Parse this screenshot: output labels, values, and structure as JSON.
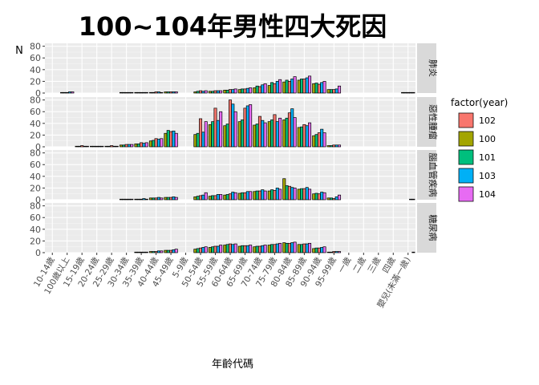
{
  "chart_data": {
    "type": "bar",
    "title": "100~104年男性四大死因",
    "xlabel": "年齡代碼",
    "ylabel": "N",
    "ylim": [
      0,
      85
    ],
    "yticks": [
      0,
      20,
      40,
      60,
      80
    ],
    "legend": {
      "title": "factor(year)",
      "placement": "right",
      "order": [
        "102",
        "100",
        "101",
        "103",
        "104"
      ]
    },
    "series_colors": {
      "100": "#A3A500",
      "101": "#00BF7D",
      "102": "#F8766D",
      "103": "#00B0F6",
      "104": "#E76BF3"
    },
    "categories": [
      "10-14歲",
      "100歲以上",
      "15-19歲",
      "20-24歲",
      "25-29歲",
      "30-34歲",
      "35-39歲",
      "40-44歲",
      "45-49歲",
      "5-9歲",
      "50-54歲",
      "55-59歲",
      "60-64歲",
      "65-69歲",
      "70-74歲",
      "75-79歲",
      "80-84歲",
      "85-89歲",
      "90-94歲",
      "95-99歲",
      "一歲",
      "二歲",
      "三歲",
      "四歲",
      "嬰兒(未滿一歲)"
    ],
    "series_order": [
      "100",
      "101",
      "102",
      "103",
      "104"
    ],
    "facets": [
      {
        "label": "肺炎",
        "values": {
          "100": [
            0,
            1,
            0,
            0,
            0,
            1,
            1,
            1,
            2,
            0,
            2,
            3,
            5,
            6,
            9,
            13,
            19,
            22,
            16,
            6,
            0,
            0,
            0,
            0,
            1
          ],
          "101": [
            0,
            1,
            0,
            0,
            0,
            1,
            1,
            1,
            2,
            0,
            3,
            3,
            5,
            7,
            12,
            18,
            22,
            24,
            17,
            6,
            0,
            0,
            0,
            0,
            1
          ],
          "102": [
            0,
            1,
            0,
            0,
            0,
            1,
            1,
            2,
            2,
            0,
            4,
            4,
            6,
            7,
            11,
            16,
            20,
            24,
            15,
            6,
            0,
            0,
            0,
            0,
            1
          ],
          "103": [
            0,
            2,
            0,
            0,
            0,
            1,
            1,
            2,
            2,
            0,
            3,
            4,
            6,
            8,
            14,
            20,
            24,
            26,
            18,
            7,
            0,
            0,
            0,
            0,
            1
          ],
          "104": [
            0,
            2,
            0,
            0,
            0,
            1,
            1,
            1,
            2,
            0,
            4,
            4,
            7,
            9,
            16,
            23,
            28,
            29,
            20,
            12,
            0,
            0,
            0,
            0,
            1
          ]
        }
      },
      {
        "label": "惡性腫瘤",
        "values": {
          "100": [
            0,
            0,
            1,
            1,
            1,
            3,
            5,
            10,
            23,
            0,
            21,
            38,
            36,
            43,
            37,
            43,
            46,
            33,
            19,
            2,
            0,
            0,
            0,
            0,
            0
          ],
          "101": [
            0,
            0,
            1,
            1,
            1,
            3,
            5,
            11,
            28,
            0,
            23,
            43,
            39,
            46,
            39,
            46,
            49,
            34,
            21,
            2,
            0,
            0,
            0,
            0,
            0
          ],
          "102": [
            0,
            0,
            2,
            1,
            2,
            4,
            7,
            14,
            26,
            0,
            48,
            66,
            80,
            66,
            52,
            55,
            58,
            38,
            24,
            3,
            0,
            0,
            0,
            0,
            0
          ],
          "103": [
            0,
            0,
            1,
            1,
            1,
            4,
            6,
            13,
            27,
            0,
            25,
            45,
            73,
            70,
            45,
            43,
            65,
            36,
            30,
            3,
            0,
            0,
            0,
            0,
            0
          ],
          "104": [
            0,
            0,
            1,
            1,
            1,
            4,
            7,
            14,
            23,
            0,
            43,
            60,
            60,
            72,
            41,
            49,
            50,
            41,
            24,
            3,
            0,
            0,
            0,
            0,
            0
          ]
        }
      },
      {
        "label": "腦血管疾病",
        "values": {
          "100": [
            0,
            0,
            0,
            0,
            0,
            1,
            1,
            3,
            4,
            0,
            5,
            6,
            8,
            11,
            14,
            15,
            36,
            18,
            10,
            3,
            0,
            0,
            0,
            0,
            0
          ],
          "101": [
            0,
            0,
            0,
            0,
            0,
            1,
            1,
            3,
            4,
            0,
            6,
            7,
            9,
            12,
            15,
            17,
            24,
            19,
            11,
            3,
            0,
            0,
            0,
            0,
            0
          ],
          "102": [
            0,
            0,
            0,
            0,
            0,
            1,
            1,
            3,
            4,
            0,
            7,
            7,
            10,
            12,
            15,
            16,
            23,
            19,
            10,
            2,
            0,
            0,
            0,
            0,
            0
          ],
          "103": [
            0,
            0,
            0,
            0,
            0,
            1,
            2,
            4,
            5,
            0,
            8,
            9,
            13,
            14,
            17,
            20,
            21,
            21,
            13,
            5,
            0,
            0,
            0,
            0,
            1
          ],
          "104": [
            0,
            0,
            0,
            0,
            0,
            1,
            1,
            3,
            4,
            0,
            12,
            9,
            12,
            14,
            15,
            18,
            20,
            18,
            12,
            8,
            0,
            0,
            0,
            0,
            1
          ]
        }
      },
      {
        "label": "糖尿病",
        "values": {
          "100": [
            0,
            0,
            0,
            0,
            0,
            0,
            1,
            2,
            4,
            0,
            6,
            9,
            13,
            11,
            10,
            13,
            17,
            14,
            7,
            1,
            0,
            0,
            0,
            0,
            0
          ],
          "101": [
            0,
            0,
            0,
            0,
            0,
            0,
            1,
            2,
            4,
            0,
            7,
            10,
            14,
            12,
            11,
            14,
            16,
            14,
            8,
            1,
            0,
            0,
            0,
            0,
            0
          ],
          "102": [
            0,
            0,
            0,
            0,
            0,
            0,
            1,
            2,
            4,
            0,
            8,
            11,
            15,
            12,
            11,
            14,
            16,
            15,
            8,
            2,
            0,
            0,
            0,
            0,
            0
          ],
          "103": [
            0,
            0,
            0,
            0,
            0,
            0,
            1,
            3,
            5,
            0,
            9,
            11,
            14,
            12,
            12,
            15,
            17,
            15,
            9,
            2,
            0,
            0,
            0,
            0,
            0
          ],
          "104": [
            0,
            0,
            0,
            0,
            0,
            0,
            1,
            3,
            6,
            0,
            10,
            13,
            15,
            13,
            13,
            16,
            18,
            16,
            10,
            2,
            0,
            0,
            0,
            0,
            1
          ]
        }
      }
    ]
  }
}
